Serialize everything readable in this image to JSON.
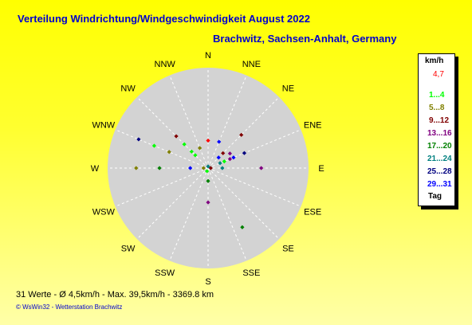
{
  "header": {
    "title": "Verteilung Windrichtung/Windgeschwindigkeit  August 2022",
    "location": "Brachwitz, Sachsen-Anhalt, Germany"
  },
  "legend": {
    "unit": "km/h",
    "mean": "4,7",
    "mean_color": "#ff0000",
    "classes": [
      {
        "label": "1...4",
        "color": "#00ff00"
      },
      {
        "label": "5...8",
        "color": "#808000"
      },
      {
        "label": "9...12",
        "color": "#800000"
      },
      {
        "label": "13...16",
        "color": "#800080"
      },
      {
        "label": "17...20",
        "color": "#008000"
      },
      {
        "label": "21...24",
        "color": "#008080"
      },
      {
        "label": "25...28",
        "color": "#000080"
      },
      {
        "label": "29...31",
        "color": "#0000ff"
      }
    ],
    "footer": "Tag"
  },
  "footer": {
    "stats": "31 Werte   -   Ø 4,5km/h   -  Max. 39,5km/h   -   3369.8 km",
    "copyright": "© WsWin32   -   Wetterstation Brachwitz"
  },
  "chart_data": {
    "type": "scatter",
    "subtype": "wind-rose",
    "directions": [
      "N",
      "NNE",
      "NE",
      "ENE",
      "E",
      "ESE",
      "SE",
      "SSE",
      "S",
      "SSW",
      "SW",
      "WSW",
      "W",
      "WNW",
      "NW",
      "NNW"
    ],
    "radial_range": [
      0,
      31
    ],
    "grid": true,
    "points": [
      {
        "dir_deg": 0,
        "speed": 8.5,
        "color": "#ff0000"
      },
      {
        "dir_deg": 22.5,
        "speed": 8.8,
        "color": "#0000ff"
      },
      {
        "dir_deg": 45,
        "speed": 14.5,
        "color": "#800000"
      },
      {
        "dir_deg": 45,
        "speed": 6.5,
        "color": "#800000"
      },
      {
        "dir_deg": 45,
        "speed": 4.6,
        "color": "#0000ff"
      },
      {
        "dir_deg": 56.25,
        "speed": 8.1,
        "color": "#800080"
      },
      {
        "dir_deg": 67.5,
        "speed": 12.1,
        "color": "#000080"
      },
      {
        "dir_deg": 67.5,
        "speed": 8.5,
        "color": "#0000ff"
      },
      {
        "dir_deg": 67.5,
        "speed": 7.3,
        "color": "#800080"
      },
      {
        "dir_deg": 67.5,
        "speed": 5.4,
        "color": "#00ff00"
      },
      {
        "dir_deg": 67.5,
        "speed": 4.0,
        "color": "#008080"
      },
      {
        "dir_deg": 90,
        "speed": 16.4,
        "color": "#800080"
      },
      {
        "dir_deg": 90,
        "speed": 4.4,
        "color": "#008080"
      },
      {
        "dir_deg": 90,
        "speed": 0.8,
        "color": "#800000"
      },
      {
        "dir_deg": 180,
        "speed": 4.0,
        "color": "#008000"
      },
      {
        "dir_deg": 180,
        "speed": 10.6,
        "color": "#800080"
      },
      {
        "dir_deg": 150,
        "speed": 21.1,
        "color": "#008000"
      },
      {
        "dir_deg": 270,
        "speed": 22.2,
        "color": "#808000"
      },
      {
        "dir_deg": 270,
        "speed": 15.0,
        "color": "#008000"
      },
      {
        "dir_deg": 270,
        "speed": 5.5,
        "color": "#0000ff"
      },
      {
        "dir_deg": 270,
        "speed": 1.4,
        "color": "#808000"
      },
      {
        "dir_deg": 292.5,
        "speed": 23.2,
        "color": "#000080"
      },
      {
        "dir_deg": 292.5,
        "speed": 18.0,
        "color": "#00ff00"
      },
      {
        "dir_deg": 292.5,
        "speed": 13.0,
        "color": "#808000"
      },
      {
        "dir_deg": 315,
        "speed": 10.4,
        "color": "#00ff00"
      },
      {
        "dir_deg": 315,
        "speed": 7.2,
        "color": "#00ff00"
      },
      {
        "dir_deg": 315,
        "speed": 5.6,
        "color": "#00ff00"
      },
      {
        "dir_deg": 315,
        "speed": 13.9,
        "color": "#800000"
      },
      {
        "dir_deg": 337.5,
        "speed": 6.7,
        "color": "#808000"
      },
      {
        "dir_deg": 0,
        "speed": 0.5,
        "color": "#008080"
      },
      {
        "dir_deg": 200,
        "speed": 1.0,
        "color": "#00ff00"
      }
    ]
  }
}
